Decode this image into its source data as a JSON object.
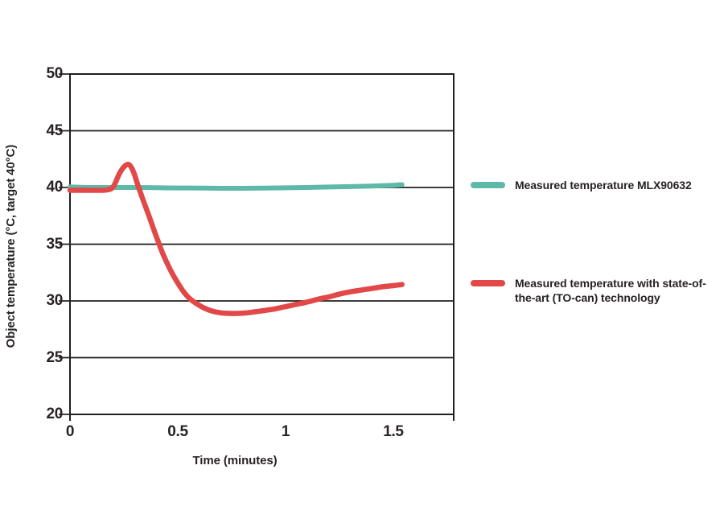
{
  "page": {
    "background": "#ffffff",
    "text_color": "#272223",
    "axis_color": "#1f1f1f"
  },
  "chart_data": {
    "type": "line",
    "title": "",
    "xlabel": "Time (minutes)",
    "ylabel": "Object temperature (°C, target 40°C)",
    "xlim": [
      0,
      1.78
    ],
    "ylim": [
      20,
      50
    ],
    "grid": "horizontal-only",
    "legend_position": "right",
    "xticks": {
      "values": [
        0,
        0.5,
        1,
        1.5
      ],
      "labels": [
        "0",
        "0.5",
        "1",
        "1.5"
      ]
    },
    "yticks": {
      "values": [
        20,
        25,
        30,
        35,
        40,
        45,
        50
      ],
      "labels": [
        "20",
        "25",
        "30",
        "35",
        "40",
        "45",
        "50"
      ]
    },
    "series": [
      {
        "name": "Measured temperature MLX90632",
        "color": "#5eb9a8",
        "stroke_width": 6,
        "points": [
          [
            0,
            40.05
          ],
          [
            0.1,
            40.0
          ],
          [
            0.2,
            40.0
          ],
          [
            0.3,
            40.0
          ],
          [
            0.4,
            39.98
          ],
          [
            0.5,
            39.96
          ],
          [
            0.6,
            39.95
          ],
          [
            0.7,
            39.93
          ],
          [
            0.8,
            39.93
          ],
          [
            0.9,
            39.95
          ],
          [
            1.0,
            39.97
          ],
          [
            1.1,
            40.0
          ],
          [
            1.2,
            40.04
          ],
          [
            1.3,
            40.08
          ],
          [
            1.4,
            40.13
          ],
          [
            1.5,
            40.2
          ],
          [
            1.54,
            40.25
          ]
        ]
      },
      {
        "name": "Measured temperature with state-of-the-art (TO-can) technology",
        "color": "#e24848",
        "stroke_width": 6.5,
        "points": [
          [
            0,
            39.75
          ],
          [
            0.06,
            39.75
          ],
          [
            0.12,
            39.75
          ],
          [
            0.17,
            39.78
          ],
          [
            0.2,
            40.05
          ],
          [
            0.23,
            41.25
          ],
          [
            0.255,
            41.9
          ],
          [
            0.275,
            42.0
          ],
          [
            0.295,
            41.35
          ],
          [
            0.315,
            40.2
          ],
          [
            0.34,
            38.85
          ],
          [
            0.37,
            37.3
          ],
          [
            0.4,
            35.7
          ],
          [
            0.43,
            34.2
          ],
          [
            0.46,
            32.95
          ],
          [
            0.49,
            31.9
          ],
          [
            0.52,
            31.0
          ],
          [
            0.55,
            30.3
          ],
          [
            0.58,
            29.85
          ],
          [
            0.62,
            29.4
          ],
          [
            0.66,
            29.1
          ],
          [
            0.7,
            28.95
          ],
          [
            0.74,
            28.9
          ],
          [
            0.78,
            28.9
          ],
          [
            0.82,
            28.95
          ],
          [
            0.86,
            29.05
          ],
          [
            0.9,
            29.15
          ],
          [
            0.95,
            29.3
          ],
          [
            1.0,
            29.5
          ],
          [
            1.05,
            29.7
          ],
          [
            1.1,
            29.9
          ],
          [
            1.15,
            30.15
          ],
          [
            1.2,
            30.35
          ],
          [
            1.25,
            30.6
          ],
          [
            1.3,
            30.8
          ],
          [
            1.35,
            30.95
          ],
          [
            1.4,
            31.1
          ],
          [
            1.45,
            31.25
          ],
          [
            1.5,
            31.35
          ],
          [
            1.54,
            31.45
          ]
        ]
      }
    ]
  }
}
